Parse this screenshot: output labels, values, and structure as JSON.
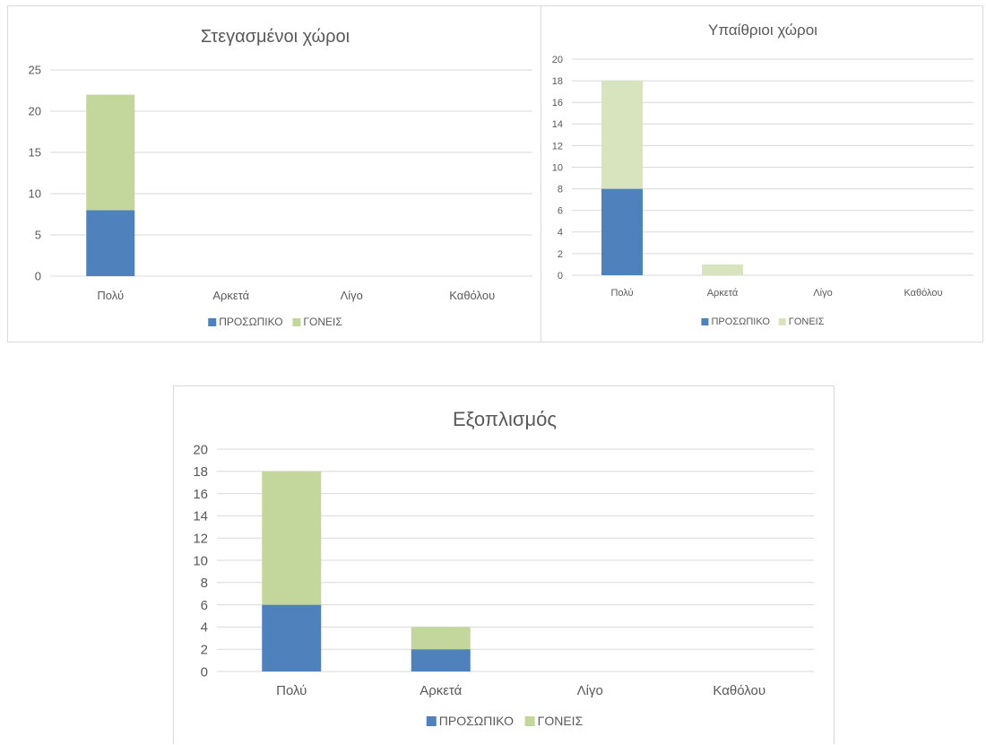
{
  "colors": {
    "personnel": "#4f81bd",
    "parents_a": "#c3d69b",
    "parents_b": "#d7e4bd",
    "grid": "#d9d9d9",
    "text": "#595959"
  },
  "chart_data": [
    {
      "type": "bar",
      "stacked": true,
      "title": "Στεγασμένοι χώροι",
      "categories": [
        "Πολύ",
        "Αρκετά",
        "Λίγο",
        "Καθόλου"
      ],
      "series": [
        {
          "name": "ΠΡΟΣΩΠΙΚΟ",
          "values": [
            8,
            0,
            0,
            0
          ]
        },
        {
          "name": "ΓΟΝΕΙΣ",
          "values": [
            14,
            0,
            0,
            0
          ]
        }
      ],
      "ylim": [
        0,
        25
      ],
      "yticks": [
        "0",
        "5",
        "10",
        "15",
        "20",
        "25"
      ],
      "grid": true,
      "legend": "bottom"
    },
    {
      "type": "bar",
      "stacked": true,
      "title": "Υπαίθριοι χώροι",
      "categories": [
        "Πολύ",
        "Αρκετά",
        "Λίγο",
        "Καθόλου"
      ],
      "series": [
        {
          "name": "ΠΡΟΣΩΠΙΚΟ",
          "values": [
            8,
            0,
            0,
            0
          ]
        },
        {
          "name": "ΓΟΝΕΙΣ",
          "values": [
            10,
            1,
            0,
            0
          ]
        }
      ],
      "ylim": [
        0,
        20
      ],
      "yticks": [
        "0",
        "2",
        "4",
        "6",
        "8",
        "10",
        "12",
        "14",
        "16",
        "18",
        "20"
      ],
      "grid": true,
      "legend": "bottom"
    },
    {
      "type": "bar",
      "stacked": true,
      "title": "Εξοπλισμός",
      "categories": [
        "Πολύ",
        "Αρκετά",
        "Λίγο",
        "Καθόλου"
      ],
      "series": [
        {
          "name": "ΠΡΟΣΩΠΙΚΟ",
          "values": [
            6,
            2,
            0,
            0
          ]
        },
        {
          "name": "ΓΟΝΕΙΣ",
          "values": [
            12,
            2,
            0,
            0
          ]
        }
      ],
      "ylim": [
        0,
        20
      ],
      "yticks": [
        "0",
        "2",
        "4",
        "6",
        "8",
        "10",
        "12",
        "14",
        "16",
        "18",
        "20"
      ],
      "grid": true,
      "legend": "bottom"
    }
  ]
}
